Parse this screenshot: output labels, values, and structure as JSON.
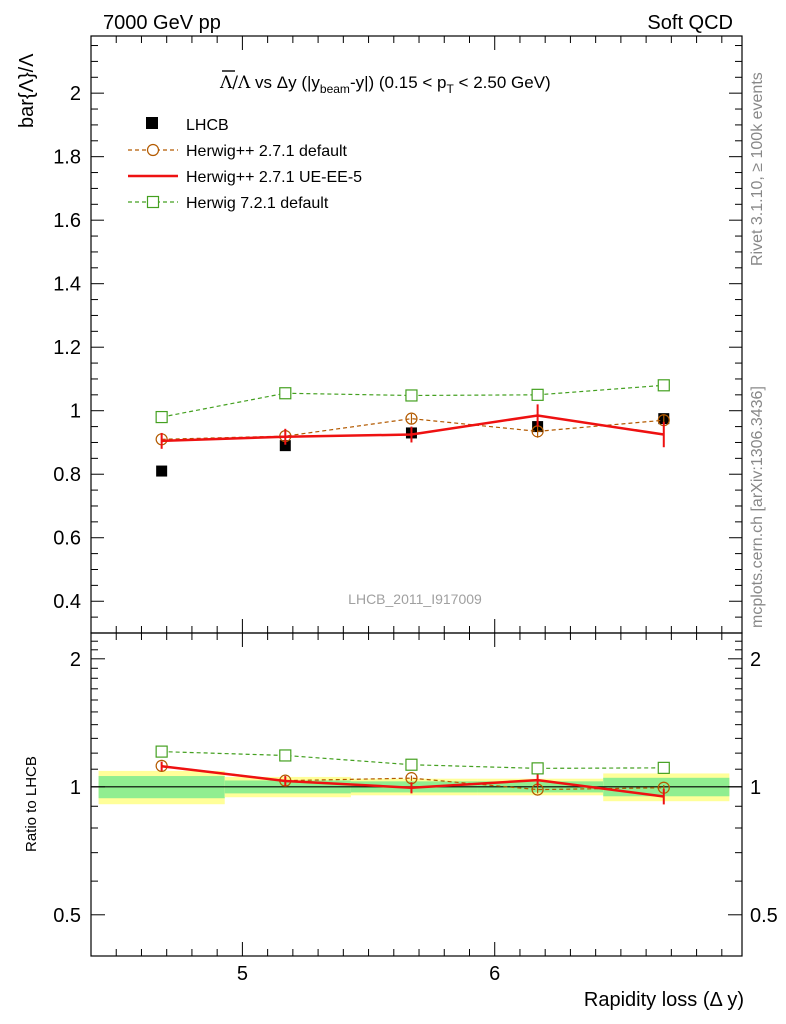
{
  "header": {
    "left": "7000 GeV pp",
    "right": "Soft QCD"
  },
  "side_labels": {
    "rivet": "Rivet 3.1.10, ≥ 100k events",
    "source": "mcplots.cern.ch [arXiv:1306.3436]"
  },
  "analysis_id": "LHCB_2011_I917009",
  "chart_data": [
    {
      "type": "scatter",
      "title": "Λ̄/Λ vs Δy (|y_beam-y|) (0.15 < p_T < 2.50 GeV)",
      "ylabel": "bar{Λ}/Λ",
      "xlabel": "Rapidity loss (Δ y)",
      "xlim": [
        4.4,
        6.98
      ],
      "ylim": [
        0.3,
        2.18
      ],
      "yticks": [
        0.4,
        0.6,
        0.8,
        1,
        1.2,
        1.4,
        1.6,
        1.8,
        2
      ],
      "ytick_labels": [
        "0.4",
        "0.6",
        "0.8",
        "1",
        "1.2",
        "1.4",
        "1.6",
        "1.8",
        "2"
      ],
      "legend_position": "top-left",
      "series": [
        {
          "name": "LHCB",
          "style": "data",
          "color": "#000000",
          "x": [
            4.68,
            5.17,
            5.67,
            6.17,
            6.67
          ],
          "values": [
            0.81,
            0.89,
            0.93,
            0.95,
            0.975
          ]
        },
        {
          "name": "Herwig++ 2.7.1 default",
          "style": "dashed-circle",
          "color": "#b35a00",
          "x": [
            4.68,
            5.17,
            5.67,
            6.17,
            6.67
          ],
          "values": [
            0.91,
            0.92,
            0.975,
            0.935,
            0.97
          ],
          "errors": [
            0.012,
            0.012,
            0.015,
            0.02,
            0.015
          ]
        },
        {
          "name": "Herwig++ 2.7.1 UE-EE-5",
          "style": "solid",
          "color": "#ee1111",
          "x": [
            4.68,
            5.17,
            5.67,
            6.17,
            6.67
          ],
          "values": [
            0.905,
            0.918,
            0.925,
            0.985,
            0.925
          ],
          "errors": [
            0.025,
            0.025,
            0.025,
            0.035,
            0.04
          ]
        },
        {
          "name": "Herwig 7.2.1 default",
          "style": "dashed-square",
          "color": "#44a020",
          "x": [
            4.68,
            5.17,
            5.67,
            6.17,
            6.67
          ],
          "values": [
            0.98,
            1.055,
            1.048,
            1.05,
            1.08
          ],
          "errors": [
            0.018,
            0.018,
            0.015,
            0.015,
            0.015
          ]
        }
      ]
    },
    {
      "type": "scatter",
      "ylabel": "Ratio to LHCB",
      "xlabel": "Rapidity loss (Δ y)",
      "xlim": [
        4.4,
        6.98
      ],
      "ylim": [
        0.4,
        2.3
      ],
      "log_scale_y": true,
      "yticks": [
        0.5,
        1,
        2
      ],
      "ytick_labels": [
        "0.5",
        "1",
        "2"
      ],
      "xticks": [
        5,
        6
      ],
      "xtick_labels": [
        "5",
        "6"
      ],
      "bands": {
        "bin_edges": [
          4.43,
          4.93,
          5.43,
          5.93,
          6.43,
          6.93
        ],
        "inner": [
          0.06,
          0.035,
          0.03,
          0.03,
          0.05
        ],
        "outer": [
          0.09,
          0.055,
          0.045,
          0.045,
          0.075
        ],
        "inner_color": "#90ee90",
        "outer_color": "#ffff99"
      },
      "series": [
        {
          "name": "Herwig++ 2.7.1 default",
          "style": "dashed-circle",
          "color": "#b35a00",
          "x": [
            4.68,
            5.17,
            5.67,
            6.17,
            6.67
          ],
          "values": [
            1.12,
            1.034,
            1.048,
            0.985,
            0.995
          ],
          "errors": [
            0.015,
            0.012,
            0.015,
            0.02,
            0.015
          ]
        },
        {
          "name": "Herwig++ 2.7.1 UE-EE-5",
          "style": "solid",
          "color": "#ee1111",
          "x": [
            4.68,
            5.17,
            5.67,
            6.17,
            6.67
          ],
          "values": [
            1.118,
            1.032,
            0.995,
            1.037,
            0.949
          ],
          "errors": [
            0.028,
            0.028,
            0.03,
            0.035,
            0.04
          ]
        },
        {
          "name": "Herwig 7.2.1 default",
          "style": "dashed-square",
          "color": "#44a020",
          "x": [
            4.68,
            5.17,
            5.67,
            6.17,
            6.67
          ],
          "values": [
            1.21,
            1.185,
            1.127,
            1.105,
            1.108
          ],
          "errors": [
            0.02,
            0.02,
            0.015,
            0.015,
            0.015
          ]
        }
      ]
    }
  ]
}
